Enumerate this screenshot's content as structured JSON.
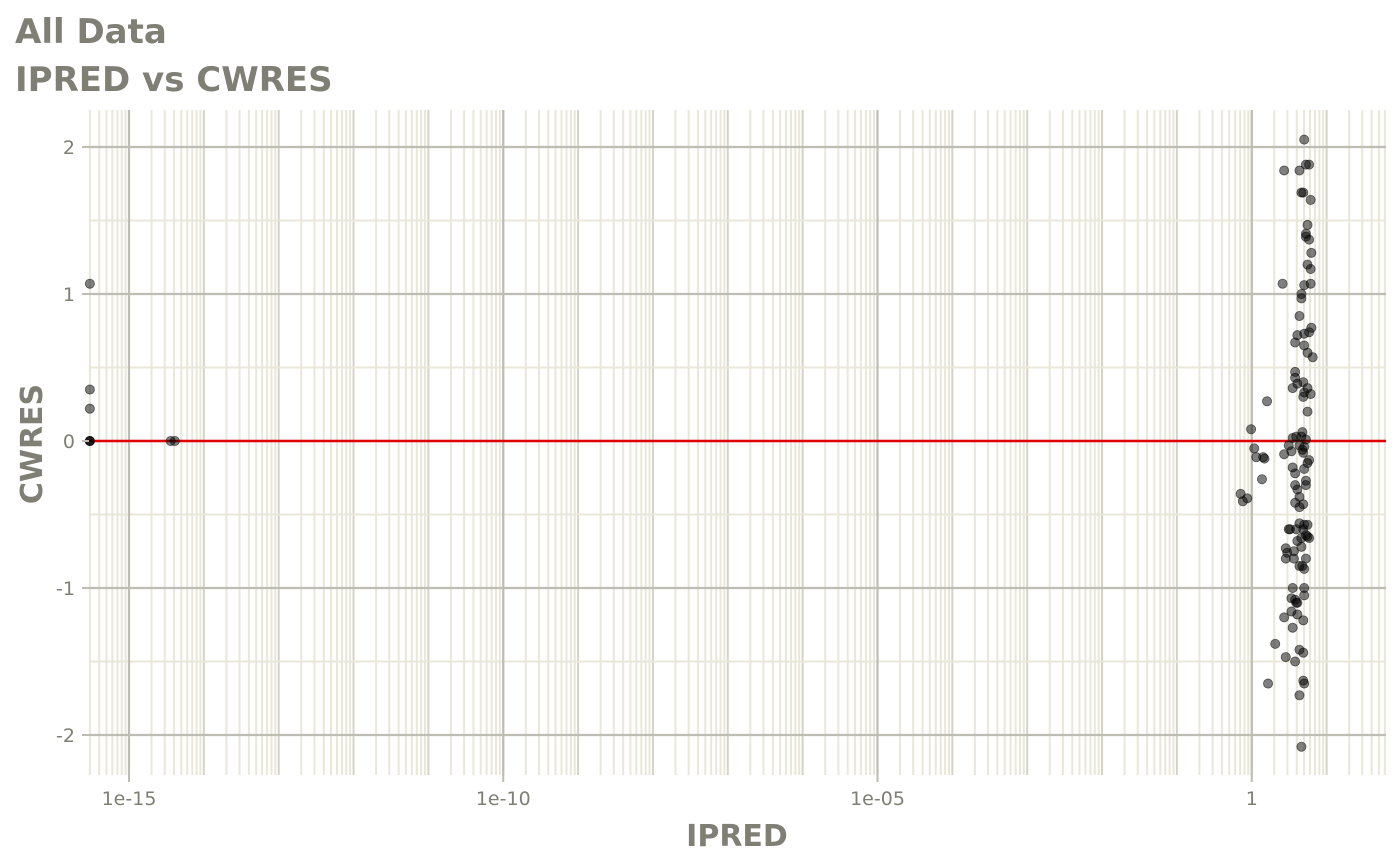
{
  "chart_data": {
    "type": "scatter",
    "title": "All Data",
    "subtitle": "IPRED vs CWRES",
    "xlabel": "IPRED",
    "ylabel": "CWRES",
    "x_scale": "log10",
    "xlim": [
      3e-16,
      1500
    ],
    "ylim": [
      -2.25,
      2.2
    ],
    "x_ticks": [
      1e-15,
      1e-10,
      1e-05,
      1
    ],
    "x_tick_labels": [
      "1e-15",
      "1e-10",
      "1e-05",
      "1"
    ],
    "y_ticks": [
      -2,
      -1,
      0,
      1,
      2
    ],
    "y_tick_labels": [
      "-2",
      "-1",
      "0",
      "1",
      "2"
    ],
    "reference_line": {
      "y": 0,
      "color": "#e00000"
    },
    "grid": true,
    "point_color": "#000000",
    "points": [
      [
        3e-16,
        1.07
      ],
      [
        3e-16,
        0.35
      ],
      [
        3e-16,
        0.22
      ],
      [
        3e-16,
        0.0
      ],
      [
        3e-16,
        0.0
      ],
      [
        3e-16,
        0.0
      ],
      [
        3.6e-15,
        0.0
      ],
      [
        4.1e-15,
        0.0
      ],
      [
        0.71,
        -0.36
      ],
      [
        0.76,
        -0.41
      ],
      [
        0.87,
        -0.39
      ],
      [
        0.98,
        0.08
      ],
      [
        1.08,
        -0.05
      ],
      [
        1.15,
        -0.11
      ],
      [
        1.37,
        -0.26
      ],
      [
        1.42,
        -0.11
      ],
      [
        1.48,
        -0.12
      ],
      [
        1.6,
        0.27
      ],
      [
        1.65,
        -1.65
      ],
      [
        2.06,
        -1.38
      ],
      [
        2.58,
        1.07
      ],
      [
        2.71,
        1.84
      ],
      [
        2.71,
        -0.09
      ],
      [
        2.71,
        -1.2
      ],
      [
        2.85,
        -0.73
      ],
      [
        2.85,
        -0.8
      ],
      [
        2.85,
        -1.47
      ],
      [
        2.98,
        -0.76
      ],
      [
        3.12,
        -0.03
      ],
      [
        3.12,
        -0.6
      ],
      [
        3.25,
        -0.6
      ],
      [
        3.39,
        -0.07
      ],
      [
        3.39,
        -1.07
      ],
      [
        3.39,
        -1.16
      ],
      [
        3.52,
        0.36
      ],
      [
        3.52,
        0.02
      ],
      [
        3.52,
        -0.18
      ],
      [
        3.52,
        -1.0
      ],
      [
        3.52,
        -1.27
      ],
      [
        3.66,
        -0.75
      ],
      [
        3.66,
        -0.8
      ],
      [
        3.8,
        0.47
      ],
      [
        3.8,
        0.43
      ],
      [
        3.8,
        0.67
      ],
      [
        3.8,
        -0.22
      ],
      [
        3.8,
        -0.3
      ],
      [
        3.8,
        -0.42
      ],
      [
        3.8,
        -1.08
      ],
      [
        3.8,
        -1.5
      ],
      [
        3.93,
        0.03
      ],
      [
        3.93,
        -0.6
      ],
      [
        3.93,
        -1.1
      ],
      [
        4.07,
        0.72
      ],
      [
        4.07,
        0.39
      ],
      [
        4.07,
        -0.33
      ],
      [
        4.07,
        -0.68
      ],
      [
        4.07,
        -1.1
      ],
      [
        4.07,
        -1.18
      ],
      [
        4.34,
        1.84
      ],
      [
        4.34,
        0.85
      ],
      [
        4.34,
        -0.03
      ],
      [
        4.34,
        -0.56
      ],
      [
        4.34,
        -0.38
      ],
      [
        4.34,
        -0.45
      ],
      [
        4.34,
        -0.85
      ],
      [
        4.34,
        -1.42
      ],
      [
        4.34,
        -1.73
      ],
      [
        4.61,
        1.69
      ],
      [
        4.61,
        1.0
      ],
      [
        4.61,
        0.97
      ],
      [
        4.61,
        0.03
      ],
      [
        4.61,
        -0.66
      ],
      [
        4.61,
        -0.72
      ],
      [
        4.61,
        -2.08
      ],
      [
        4.75,
        0.06
      ],
      [
        4.75,
        -0.06
      ],
      [
        4.75,
        -0.85
      ],
      [
        4.88,
        1.69
      ],
      [
        4.88,
        0.4
      ],
      [
        4.88,
        0.3
      ],
      [
        4.88,
        -0.08
      ],
      [
        4.88,
        -0.43
      ],
      [
        4.88,
        -0.6
      ],
      [
        4.88,
        -1.22
      ],
      [
        4.88,
        -1.44
      ],
      [
        4.88,
        -1.63
      ],
      [
        5.02,
        2.05
      ],
      [
        5.02,
        1.06
      ],
      [
        5.02,
        0.65
      ],
      [
        5.02,
        0.73
      ],
      [
        5.02,
        0.33
      ],
      [
        5.02,
        -0.04
      ],
      [
        5.02,
        -0.19
      ],
      [
        5.02,
        -0.57
      ],
      [
        5.02,
        -0.87
      ],
      [
        5.02,
        -1.0
      ],
      [
        5.02,
        -1.05
      ],
      [
        5.02,
        -1.65
      ],
      [
        5.29,
        1.88
      ],
      [
        5.29,
        1.39
      ],
      [
        5.29,
        1.41
      ],
      [
        5.29,
        0.01
      ],
      [
        5.29,
        -0.27
      ],
      [
        5.29,
        -0.3
      ],
      [
        5.29,
        -0.64
      ],
      [
        5.29,
        -0.8
      ],
      [
        5.56,
        1.47
      ],
      [
        5.56,
        1.2
      ],
      [
        5.56,
        0.6
      ],
      [
        5.56,
        0.36
      ],
      [
        5.56,
        0.2
      ],
      [
        5.56,
        -0.15
      ],
      [
        5.56,
        -0.57
      ],
      [
        5.56,
        -0.65
      ],
      [
        5.84,
        1.88
      ],
      [
        5.84,
        1.37
      ],
      [
        5.84,
        0.74
      ],
      [
        5.84,
        -0.13
      ],
      [
        5.84,
        -0.66
      ],
      [
        6.12,
        1.64
      ],
      [
        6.12,
        1.17
      ],
      [
        6.12,
        1.07
      ],
      [
        6.12,
        0.32
      ],
      [
        6.25,
        1.28
      ],
      [
        6.25,
        0.77
      ],
      [
        6.52,
        0.57
      ]
    ]
  }
}
